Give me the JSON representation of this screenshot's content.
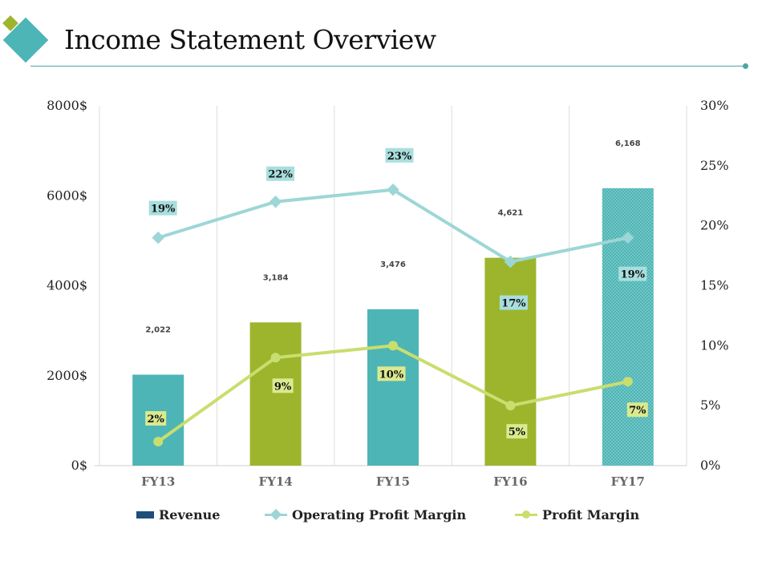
{
  "header": {
    "title": "Income Statement Overview"
  },
  "colors": {
    "teal": "#4db5b5",
    "olive": "#9db52c",
    "op_line": "#9dd6d6",
    "profit_line": "#c8de6e",
    "label_bg_teal": "#a8dede",
    "label_bg_green": "#dbe98f",
    "legend_revenue": "#1f4e79",
    "rule": "#4aa6a6"
  },
  "chart_data": {
    "type": "bar",
    "categories": [
      "FY13",
      "FY14",
      "FY15",
      "FY16",
      "FY17"
    ],
    "y_left": {
      "ticks": [
        "0$",
        "2000$",
        "4000$",
        "6000$",
        "8000$"
      ],
      "range": [
        0,
        8000
      ]
    },
    "y_right": {
      "ticks": [
        "0%",
        "5%",
        "10%",
        "15%",
        "20%",
        "25%",
        "30%"
      ],
      "range": [
        0,
        30
      ]
    },
    "series": [
      {
        "name": "Revenue",
        "kind": "bar",
        "axis": "left",
        "values": [
          2022,
          3184,
          3476,
          4621,
          6168
        ],
        "labels": [
          "2,022",
          "3,184",
          "3,476",
          "4,621",
          "6,168"
        ],
        "colors": [
          "#4db5b5",
          "#9db52c",
          "#4db5b5",
          "#9db52c",
          "#4db5b5"
        ]
      },
      {
        "name": "Operating Profit Margin",
        "kind": "line",
        "axis": "right",
        "values": [
          19,
          22,
          23,
          17,
          19
        ],
        "labels": [
          "19%",
          "22%",
          "23%",
          "17%",
          "19%"
        ]
      },
      {
        "name": "Profit Margin",
        "kind": "line",
        "axis": "right",
        "values": [
          2,
          9,
          10,
          5,
          7
        ],
        "labels": [
          "2%",
          "9%",
          "10%",
          "5%",
          "7%"
        ]
      }
    ],
    "grid": "vertical",
    "legend_position": "bottom"
  },
  "legend": {
    "revenue": "Revenue",
    "op_margin": "Operating Profit Margin",
    "profit_margin": "Profit Margin"
  }
}
